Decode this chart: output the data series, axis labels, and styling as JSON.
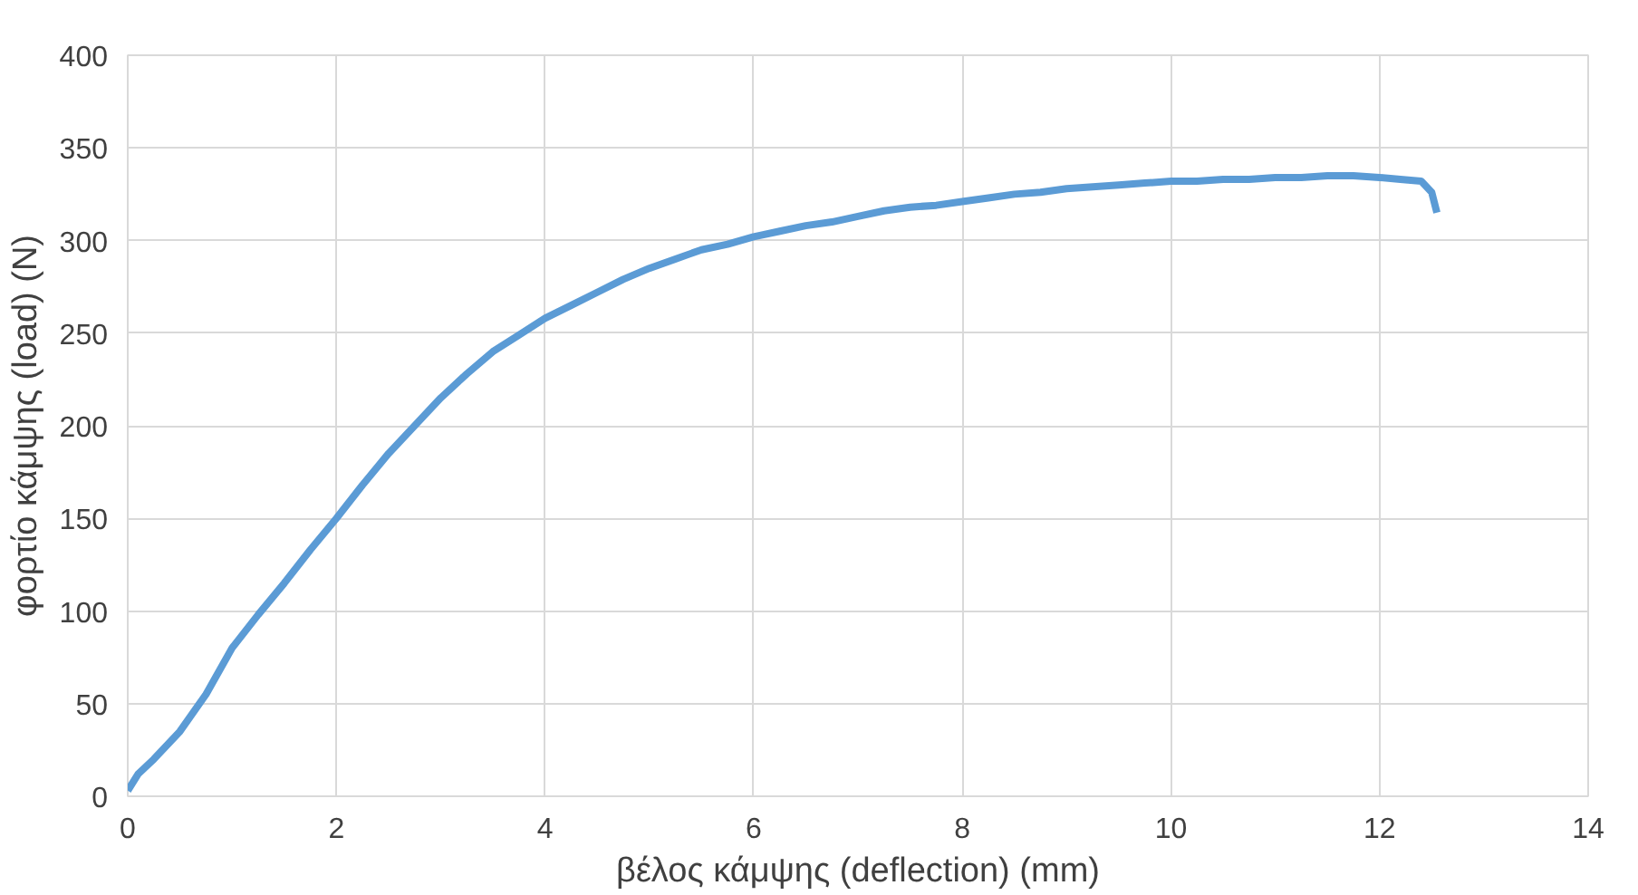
{
  "chart_data": {
    "type": "line",
    "xlabel": "βέλος κάμψης (deflection) (mm)",
    "ylabel": "φορτίο κάμψης (load) (N)",
    "xlim": [
      0,
      14
    ],
    "xticks": [
      0,
      2,
      4,
      6,
      8,
      10,
      12,
      14
    ],
    "ylim": [
      0,
      400
    ],
    "yticks": [
      0,
      50,
      100,
      150,
      200,
      250,
      300,
      350,
      400
    ],
    "grid": true,
    "marker": "none",
    "line_style": "solid",
    "series": [
      {
        "color": "#5b9bd5",
        "x": [
          0,
          0.1,
          0.25,
          0.5,
          0.75,
          1,
          1.25,
          1.5,
          1.75,
          2,
          2.25,
          2.5,
          2.75,
          3,
          3.25,
          3.5,
          3.75,
          4,
          4.25,
          4.5,
          4.75,
          5,
          5.25,
          5.5,
          5.75,
          6,
          6.25,
          6.5,
          6.75,
          7,
          7.25,
          7.5,
          7.75,
          8,
          8.25,
          8.5,
          8.75,
          9,
          9.25,
          9.5,
          9.75,
          10,
          10.25,
          10.5,
          10.75,
          11,
          11.25,
          11.5,
          11.75,
          12,
          12.2,
          12.4,
          12.5,
          12.55
        ],
        "values": [
          3,
          12,
          20,
          35,
          55,
          80,
          98,
          115,
          133,
          150,
          168,
          185,
          200,
          215,
          228,
          240,
          249,
          258,
          265,
          272,
          279,
          285,
          290,
          295,
          298,
          302,
          305,
          308,
          310,
          313,
          316,
          318,
          319,
          321,
          323,
          325,
          326,
          328,
          329,
          330,
          331,
          332,
          332,
          333,
          333,
          334,
          334,
          335,
          335,
          334,
          333,
          332,
          326,
          315
        ]
      }
    ]
  }
}
